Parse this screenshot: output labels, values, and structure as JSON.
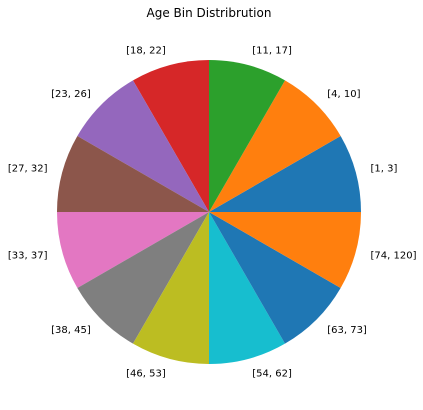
{
  "chart_data": {
    "type": "pie",
    "title": "Age Bin Distribrution",
    "categories": [
      "[1, 3]",
      "[4, 10]",
      "[11, 17]",
      "[18, 22]",
      "[23, 26]",
      "[27, 32]",
      "[33, 37]",
      "[38, 45]",
      "[46, 53]",
      "[54, 62]",
      "[63, 73]",
      "[74, 120]"
    ],
    "values": [
      1,
      1,
      1,
      1,
      1,
      1,
      1,
      1,
      1,
      1,
      1,
      1
    ],
    "colors": [
      "#1f77b4",
      "#ff7f0e",
      "#2ca02c",
      "#d62728",
      "#9467bd",
      "#8c564b",
      "#e377c2",
      "#7f7f7f",
      "#bcbd22",
      "#17becf",
      "#1f77b4",
      "#ff7f0e"
    ],
    "start_angle_deg": 0,
    "direction": "counterclockwise",
    "legend": "none"
  }
}
